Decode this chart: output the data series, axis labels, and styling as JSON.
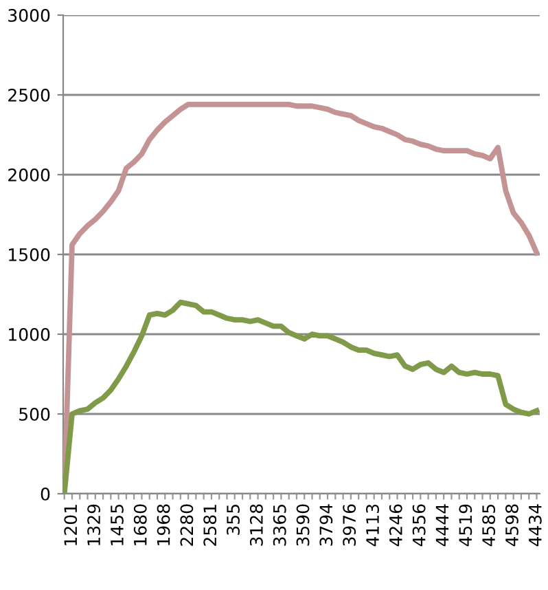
{
  "chart_data": {
    "type": "line",
    "categories": [
      null,
      "1201",
      null,
      null,
      "1329",
      null,
      null,
      "1455",
      null,
      null,
      "1680",
      null,
      null,
      "1968",
      null,
      null,
      "2280",
      null,
      null,
      "2581",
      null,
      null,
      "355",
      null,
      null,
      "3128",
      null,
      null,
      "3365",
      null,
      null,
      "3590",
      null,
      null,
      "3794",
      null,
      null,
      "3976",
      null,
      null,
      "4113",
      null,
      null,
      "4246",
      null,
      null,
      "4356",
      null,
      null,
      "4444",
      null,
      null,
      "4519",
      null,
      null,
      "4585",
      null,
      null,
      "4598",
      null,
      null,
      "4434"
    ],
    "series": [
      {
        "color": "#c49494",
        "values": [
          0,
          1560,
          1630,
          1680,
          1720,
          1770,
          1830,
          1900,
          2040,
          2080,
          2130,
          2220,
          2280,
          2330,
          2370,
          2410,
          2440,
          2440,
          2440,
          2440,
          2440,
          2440,
          2440,
          2440,
          2440,
          2440,
          2440,
          2440,
          2440,
          2440,
          2430,
          2430,
          2430,
          2420,
          2410,
          2390,
          2380,
          2370,
          2340,
          2320,
          2300,
          2290,
          2270,
          2250,
          2220,
          2210,
          2190,
          2180,
          2160,
          2150,
          2150,
          2150,
          2150,
          2130,
          2120,
          2100,
          2170,
          1900,
          1760,
          1700,
          1620,
          1510
        ]
      },
      {
        "color": "#7f9a48",
        "values": [
          0,
          500,
          520,
          530,
          570,
          600,
          650,
          720,
          800,
          890,
          990,
          1120,
          1130,
          1120,
          1150,
          1200,
          1190,
          1180,
          1140,
          1140,
          1120,
          1100,
          1090,
          1090,
          1080,
          1090,
          1070,
          1050,
          1050,
          1010,
          990,
          970,
          1000,
          990,
          990,
          970,
          950,
          920,
          900,
          900,
          880,
          870,
          860,
          870,
          800,
          780,
          810,
          820,
          780,
          760,
          800,
          760,
          750,
          760,
          750,
          750,
          740,
          560,
          530,
          510,
          500,
          520
        ]
      }
    ],
    "ylim": [
      0,
      3000
    ],
    "yticks": [
      0,
      500,
      1000,
      1500,
      2000,
      2500,
      3000
    ],
    "grid": "y"
  }
}
